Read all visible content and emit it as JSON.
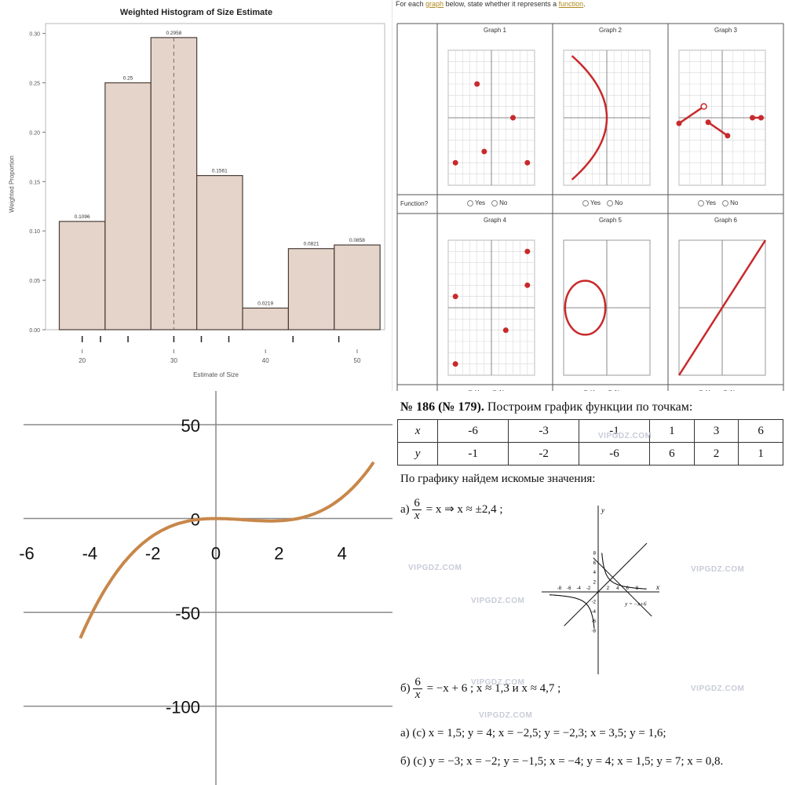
{
  "chart_data": [
    {
      "type": "bar",
      "title": "Weighted Histogram of Size Estimate",
      "xlabel": "Estimate of Size",
      "ylabel": "Weighted Proportion",
      "bins": [
        {
          "from": 17.5,
          "to": 22.5,
          "value": 0.1096,
          "label": "0.1096"
        },
        {
          "from": 22.5,
          "to": 27.5,
          "value": 0.25,
          "label": "0.25"
        },
        {
          "from": 27.5,
          "to": 32.5,
          "value": 0.2958,
          "label": "0.2958"
        },
        {
          "from": 32.5,
          "to": 37.5,
          "value": 0.1561,
          "label": "0.1561"
        },
        {
          "from": 37.5,
          "to": 42.5,
          "value": 0.0219,
          "label": "0.0219"
        },
        {
          "from": 42.5,
          "to": 47.5,
          "value": 0.0821,
          "label": "0.0821"
        },
        {
          "from": 47.5,
          "to": 52.5,
          "value": 0.0858,
          "label": "0.0858"
        }
      ],
      "reference_line_x": 30,
      "rug_ticks": [
        20,
        22,
        25,
        30,
        33,
        36,
        43,
        48
      ],
      "x_ticks": [
        20,
        30,
        40,
        50
      ],
      "y_ticks": [
        "0.00",
        "0.05",
        "0.10",
        "0.15",
        "0.20",
        "0.25",
        "0.30"
      ],
      "xlim": [
        16,
        53
      ],
      "ylim": [
        0,
        0.31
      ],
      "bar_color": "#e5d4c9",
      "bar_edge": "#4a3d38",
      "grid": false
    },
    {
      "type": "line",
      "series": [
        {
          "x": [
            -4.3,
            -4,
            -3.5,
            -3,
            -2.5,
            -2,
            -1.5,
            -1,
            -0.5,
            0,
            0.5,
            1,
            1.5,
            2,
            2.5,
            3,
            3.5,
            4,
            4.5,
            5
          ],
          "y": [
            -158,
            -128,
            -85.8,
            -54,
            -31.3,
            -16,
            -6.75,
            -2,
            -0.25,
            0,
            0.25,
            0,
            -0.75,
            -2,
            -3.1,
            -1,
            4.3,
            16,
            33.8,
            60
          ]
        }
      ],
      "x_ticks": [
        -6,
        -4,
        -2,
        0,
        2,
        4
      ],
      "y_ticks": [
        50,
        0,
        -50,
        -100
      ],
      "xlim": [
        -6.1,
        5.6
      ],
      "ylim": [
        -142,
        68
      ],
      "line_color": "#c8874a",
      "grid": "horizontal"
    }
  ],
  "fn_section": {
    "intro_before": "For each ",
    "intro_link1": "graph",
    "intro_mid": " below, state whether it represents a ",
    "intro_link2": "function",
    "intro_after": ".",
    "row_label": "Function?",
    "yes": "Yes",
    "no": "No",
    "graphs": [
      {
        "title": "Graph 1"
      },
      {
        "title": "Graph 2"
      },
      {
        "title": "Graph 3"
      },
      {
        "title": "Graph 4"
      },
      {
        "title": "Graph 5"
      },
      {
        "title": "Graph 6"
      }
    ],
    "point_color": "#c8292b"
  },
  "book": {
    "number": "№ 186 (№ 179).",
    "heading_rest": " Построим график функции по точкам:",
    "table": {
      "x_label": "x",
      "y_label": "y",
      "x": [
        "-6",
        "-3",
        "-1",
        "1",
        "3",
        "6"
      ],
      "y": [
        "-1",
        "-2",
        "-6",
        "6",
        "2",
        "1"
      ]
    },
    "find_text": "По графику найдем искомые значения:",
    "a_prefix": "а)",
    "a_num": "6",
    "a_den": "x",
    "a_rest": " = x ⇒ x ≈ ±2,4 ;",
    "b_prefix": "б)",
    "b_num": "6",
    "b_den": "x",
    "b_rest": " = −x + 6 ;  x ≈ 1,3  и  x ≈ 4,7 ;",
    "line_c1": "а) (c)  x = 1,5; y = 4;   x = −2,5; y = −2,3;   x = 3,5; y = 1,6;",
    "line_c2": "б) (c) y = −3; x = −2;   y = −1,5; x = −4; y = 4; x = 1,5; y = 7; x = 0,8.",
    "axis_label_x": "x",
    "axis_label_y": "y",
    "curve_label": "y = −x+6",
    "tick_labels_x": [
      "-8",
      "-6",
      "-4",
      "-2",
      "2",
      "4",
      "6",
      "8"
    ],
    "tick_labels_y": [
      "8",
      "6",
      "4",
      "2",
      "-2",
      "-4",
      "-6",
      "-8"
    ],
    "watermark": "VIPGDZ.COM"
  }
}
